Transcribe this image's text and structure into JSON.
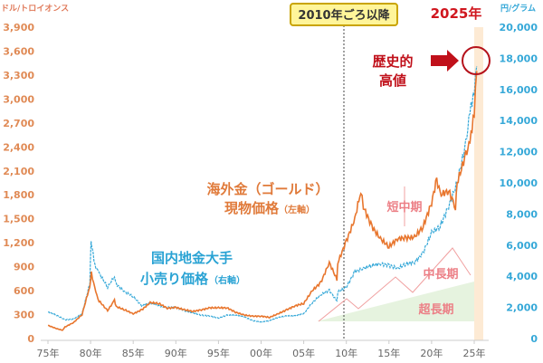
{
  "chart_data": {
    "type": "line",
    "left_axis": {
      "unit": "ドル/トロイオンス",
      "ticks": [
        0,
        300,
        600,
        900,
        1200,
        1500,
        1800,
        2100,
        2400,
        2700,
        3000,
        3300,
        3600,
        3900
      ],
      "tick_labels": [
        "0",
        "300",
        "600",
        "900",
        "1,200",
        "1,500",
        "1,800",
        "2,100",
        "2,400",
        "2,700",
        "3,000",
        "3,300",
        "3,600",
        "3,900"
      ],
      "range": [
        0,
        3900
      ],
      "color": "#e07a3a"
    },
    "right_axis": {
      "unit": "円/グラム",
      "ticks": [
        0,
        2000,
        4000,
        6000,
        8000,
        10000,
        12000,
        14000,
        16000,
        18000,
        20000
      ],
      "tick_labels": [
        "0",
        "2,000",
        "4,000",
        "6,000",
        "8,000",
        "10,000",
        "12,000",
        "14,000",
        "16,000",
        "18,000",
        "20,000"
      ],
      "range": [
        0,
        20000
      ],
      "color": "#35a8d8"
    },
    "x_ticks": [
      1975,
      1980,
      1985,
      1990,
      1995,
      2000,
      2005,
      2010,
      2015,
      2020,
      2025
    ],
    "x_tick_labels": [
      "75年",
      "80年",
      "85年",
      "90年",
      "95年",
      "00年",
      "05年",
      "10年",
      "15年",
      "20年",
      "25年"
    ],
    "series": [
      {
        "name": "海外金（ゴールド）現物価格（左軸）",
        "axis": "left",
        "color": "#e8762e",
        "x": [
          1975,
          1976,
          1976.7,
          1977,
          1978,
          1979,
          1979.9,
          1980.1,
          1980.6,
          1981,
          1982,
          1982.8,
          1983,
          1984,
          1985,
          1986,
          1987,
          1988,
          1989,
          1990,
          1991,
          1992,
          1993,
          1994,
          1995,
          1996,
          1997,
          1998,
          1999,
          2000,
          2001,
          2002,
          2003,
          2004,
          2005,
          2006,
          2007,
          2008,
          2008.9,
          2009,
          2010,
          2011,
          2011.7,
          2012,
          2013,
          2014,
          2015,
          2016,
          2017,
          2018,
          2019,
          2020,
          2020.6,
          2021,
          2022,
          2022.8,
          2023,
          2024,
          2024.5,
          2025,
          2025.3
        ],
        "values": [
          165,
          125,
          104,
          145,
          200,
          300,
          650,
          820,
          580,
          470,
          350,
          480,
          400,
          360,
          310,
          360,
          450,
          440,
          380,
          390,
          360,
          340,
          360,
          385,
          385,
          385,
          330,
          295,
          280,
          280,
          265,
          310,
          360,
          410,
          440,
          600,
          700,
          950,
          740,
          950,
          1220,
          1500,
          1850,
          1650,
          1400,
          1250,
          1150,
          1250,
          1260,
          1270,
          1400,
          1700,
          2000,
          1800,
          1850,
          1650,
          1950,
          2300,
          2450,
          2850,
          3350
        ]
      },
      {
        "name": "国内地金大手小売り価格（右軸）",
        "axis": "right",
        "color": "#35a8d8",
        "x": [
          1975,
          1976,
          1977,
          1978,
          1979,
          1979.9,
          1980.05,
          1980.5,
          1981,
          1982,
          1982.8,
          1983,
          1984,
          1985,
          1986,
          1987,
          1988,
          1989,
          1990,
          1991,
          1992,
          1993,
          1994,
          1995,
          1996,
          1997,
          1998,
          1999,
          2000,
          2001,
          2002,
          2003,
          2004,
          2005,
          2006,
          2007,
          2008,
          2008.9,
          2009,
          2010,
          2011,
          2012,
          2013,
          2014,
          2015,
          2016,
          2017,
          2018,
          2019,
          2020,
          2021,
          2022,
          2023,
          2024,
          2024.5,
          2025,
          2025.3
        ],
        "values": [
          1700,
          1500,
          1200,
          1250,
          1600,
          3500,
          6300,
          4700,
          4200,
          3300,
          4000,
          3500,
          3000,
          2700,
          2100,
          2300,
          2100,
          2000,
          2000,
          1800,
          1650,
          1500,
          1450,
          1300,
          1500,
          1500,
          1400,
          1150,
          1050,
          1150,
          1350,
          1450,
          1450,
          1600,
          2300,
          2800,
          3100,
          2400,
          3000,
          3300,
          4300,
          4500,
          4700,
          4800,
          4700,
          4500,
          4800,
          4900,
          5500,
          6800,
          7200,
          8500,
          10000,
          12500,
          14500,
          16000,
          17500
        ]
      }
    ],
    "annotations": {
      "period_box": "2010年ごろ以降",
      "year_label": "2025年",
      "high_label_1": "歴史的",
      "high_label_2": "高値",
      "gold_label_1": "海外金（ゴールド）",
      "gold_label_2": "現物価格",
      "gold_label_axis": "（左軸）",
      "jp_label_1": "国内地金大手",
      "jp_label_2": "小売り価格",
      "jp_label_axis": "（右軸）",
      "short_mid": "短中期",
      "mid_long": "中長期",
      "super_long": "超長期"
    }
  }
}
